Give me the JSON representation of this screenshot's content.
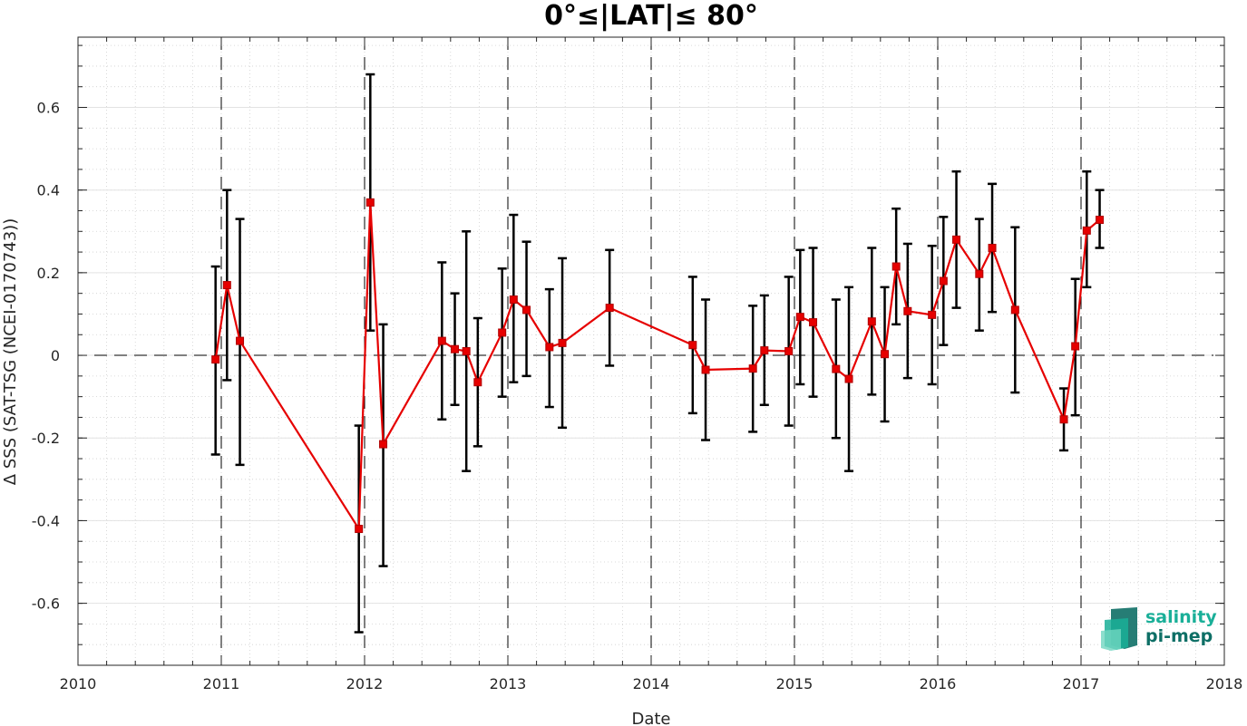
{
  "chart_data": {
    "type": "line",
    "title": "0°≤|LAT|≤ 80°",
    "xlabel": "Date",
    "ylabel": "Δ SSS (SAT-TSG (NCEI-0170743))",
    "xlim": [
      2010,
      2018
    ],
    "ylim": [
      -0.75,
      0.77
    ],
    "x_ticks": [
      "2010",
      "2011",
      "2012",
      "2013",
      "2014",
      "2015",
      "2016",
      "2017",
      "2018"
    ],
    "y_ticks": [
      "-0.6",
      "-0.4",
      "-0.2",
      "0",
      "0.2",
      "0.4",
      "0.6"
    ],
    "y_tick_values": [
      -0.6,
      -0.4,
      -0.2,
      0,
      0.2,
      0.4,
      0.6
    ],
    "grid": true,
    "reference_line_y": 0,
    "year_lines": [
      2011,
      2012,
      2013,
      2014,
      2015,
      2016,
      2017
    ],
    "line_color": "#e60000",
    "errorbar_color": "#000000",
    "series": [
      {
        "points": [
          {
            "x": 2010.96,
            "y": -0.01,
            "lo": -0.24,
            "hi": 0.215
          },
          {
            "x": 2011.04,
            "y": 0.17,
            "lo": -0.06,
            "hi": 0.4
          },
          {
            "x": 2011.13,
            "y": 0.035,
            "lo": -0.265,
            "hi": 0.33
          },
          {
            "x": 2011.96,
            "y": -0.42,
            "lo": -0.67,
            "hi": -0.17
          },
          {
            "x": 2012.04,
            "y": 0.37,
            "lo": 0.06,
            "hi": 0.68
          },
          {
            "x": 2012.13,
            "y": -0.215,
            "lo": -0.51,
            "hi": 0.075
          },
          {
            "x": 2012.54,
            "y": 0.035,
            "lo": -0.155,
            "hi": 0.225
          },
          {
            "x": 2012.63,
            "y": 0.015,
            "lo": -0.12,
            "hi": 0.15
          },
          {
            "x": 2012.71,
            "y": 0.01,
            "lo": -0.28,
            "hi": 0.3
          },
          {
            "x": 2012.79,
            "y": -0.065,
            "lo": -0.22,
            "hi": 0.09
          },
          {
            "x": 2012.96,
            "y": 0.055,
            "lo": -0.1,
            "hi": 0.21
          },
          {
            "x": 2013.04,
            "y": 0.135,
            "lo": -0.065,
            "hi": 0.34
          },
          {
            "x": 2013.13,
            "y": 0.11,
            "lo": -0.05,
            "hi": 0.275
          },
          {
            "x": 2013.29,
            "y": 0.02,
            "lo": -0.125,
            "hi": 0.16
          },
          {
            "x": 2013.38,
            "y": 0.03,
            "lo": -0.175,
            "hi": 0.235
          },
          {
            "x": 2013.71,
            "y": 0.115,
            "lo": -0.025,
            "hi": 0.255
          },
          {
            "x": 2014.29,
            "y": 0.025,
            "lo": -0.14,
            "hi": 0.19
          },
          {
            "x": 2014.38,
            "y": -0.035,
            "lo": -0.205,
            "hi": 0.135
          },
          {
            "x": 2014.71,
            "y": -0.032,
            "lo": -0.185,
            "hi": 0.12
          },
          {
            "x": 2014.79,
            "y": 0.012,
            "lo": -0.12,
            "hi": 0.145
          },
          {
            "x": 2014.96,
            "y": 0.01,
            "lo": -0.17,
            "hi": 0.19
          },
          {
            "x": 2015.04,
            "y": 0.093,
            "lo": -0.07,
            "hi": 0.255
          },
          {
            "x": 2015.13,
            "y": 0.08,
            "lo": -0.1,
            "hi": 0.26
          },
          {
            "x": 2015.29,
            "y": -0.033,
            "lo": -0.2,
            "hi": 0.135
          },
          {
            "x": 2015.38,
            "y": -0.057,
            "lo": -0.28,
            "hi": 0.165
          },
          {
            "x": 2015.54,
            "y": 0.082,
            "lo": -0.095,
            "hi": 0.26
          },
          {
            "x": 2015.63,
            "y": 0.003,
            "lo": -0.16,
            "hi": 0.165
          },
          {
            "x": 2015.71,
            "y": 0.215,
            "lo": 0.075,
            "hi": 0.355
          },
          {
            "x": 2015.79,
            "y": 0.107,
            "lo": -0.055,
            "hi": 0.27
          },
          {
            "x": 2015.96,
            "y": 0.098,
            "lo": -0.07,
            "hi": 0.265
          },
          {
            "x": 2016.04,
            "y": 0.18,
            "lo": 0.025,
            "hi": 0.335
          },
          {
            "x": 2016.13,
            "y": 0.28,
            "lo": 0.115,
            "hi": 0.445
          },
          {
            "x": 2016.29,
            "y": 0.197,
            "lo": 0.06,
            "hi": 0.33
          },
          {
            "x": 2016.38,
            "y": 0.26,
            "lo": 0.105,
            "hi": 0.415
          },
          {
            "x": 2016.54,
            "y": 0.11,
            "lo": -0.09,
            "hi": 0.31
          },
          {
            "x": 2016.88,
            "y": -0.155,
            "lo": -0.23,
            "hi": -0.08
          },
          {
            "x": 2016.96,
            "y": 0.022,
            "lo": -0.145,
            "hi": 0.185
          },
          {
            "x": 2017.04,
            "y": 0.302,
            "lo": 0.165,
            "hi": 0.445
          },
          {
            "x": 2017.13,
            "y": 0.328,
            "lo": 0.26,
            "hi": 0.4
          }
        ]
      }
    ]
  },
  "logo": {
    "line1": "salinity",
    "line2": "pi-mep",
    "color1": "#1aaf98",
    "color2": "#0e6f66"
  }
}
